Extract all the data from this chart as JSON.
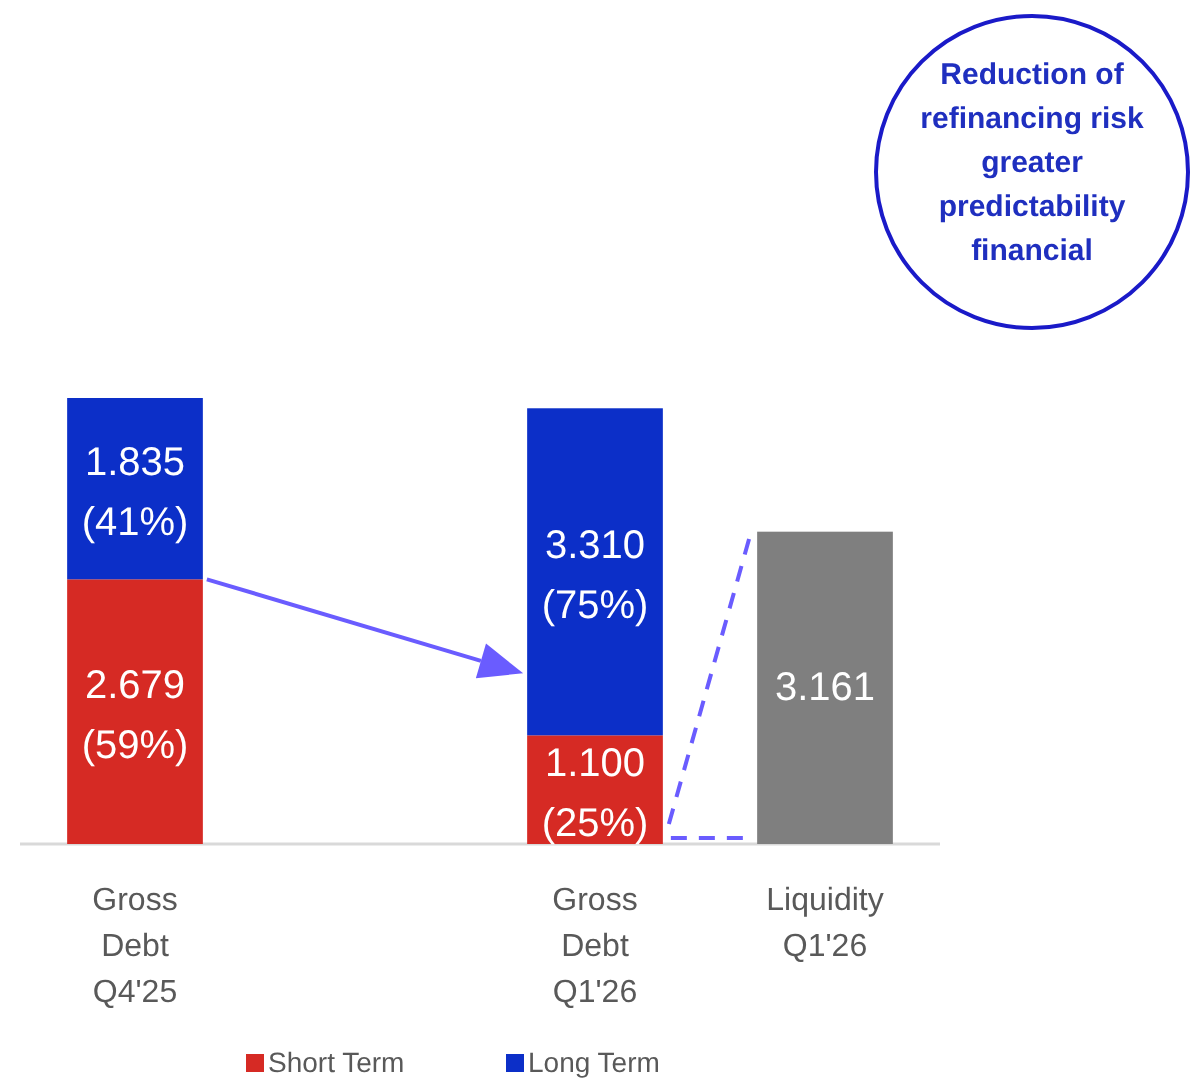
{
  "chart_data": {
    "type": "bar",
    "stacked": true,
    "categories": [
      "Gross Debt Q4'25",
      null,
      "Gross Debt Q1'26",
      "Liquidity Q1'26"
    ],
    "series": [
      {
        "name": "Short Term",
        "color": "#d62a24",
        "values": [
          2.679,
          null,
          1.1,
          null
        ],
        "value_labels": [
          "2.679\n(59%)",
          null,
          "1.100\n(25%)",
          null
        ]
      },
      {
        "name": "Long Term",
        "color": "#0c2fc8",
        "values": [
          1.835,
          null,
          3.31,
          null
        ],
        "value_labels": [
          "1.835\n(41%)",
          null,
          "3.310\n(75%)",
          null
        ]
      },
      {
        "color": "#7f7f7f",
        "values": [
          null,
          null,
          null,
          3.161
        ],
        "value_labels": [
          null,
          null,
          null,
          "3.161"
        ]
      }
    ],
    "legend": "bottom",
    "annotations": [
      "Reduction of\nrefinancing risk\ngreater\npredictability\nfinancial"
    ]
  }
}
